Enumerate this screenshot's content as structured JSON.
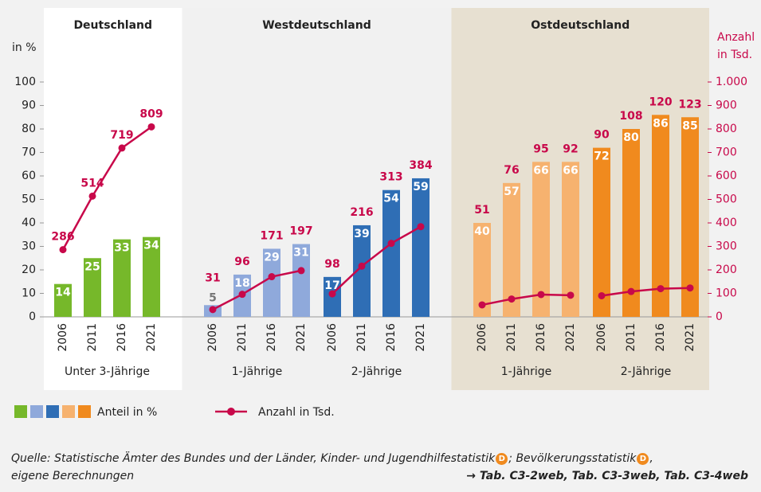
{
  "chart_data": {
    "type": "bar-line",
    "y_label": "in %",
    "y2_label": [
      "Anzahl",
      "in Tsd."
    ],
    "ylim": [
      0,
      100
    ],
    "yticks": [
      0,
      10,
      20,
      30,
      40,
      50,
      60,
      70,
      80,
      90,
      100
    ],
    "y2lim": [
      0,
      1000
    ],
    "y2ticks": [
      0,
      100,
      200,
      300,
      400,
      500,
      600,
      700,
      800,
      900,
      {
        "value": 1000,
        "label": "1.000"
      }
    ],
    "panels": [
      {
        "title": "Deutschland",
        "background": "#ffffff",
        "groups": [
          {
            "label": "Unter 3-Jährige",
            "categories": [
              "2006",
              "2011",
              "2016",
              "2021"
            ],
            "series": [
              {
                "name": "Anteil in %",
                "color": "#76b82a",
                "values": [
                  14,
                  25,
                  33,
                  34
                ]
              },
              {
                "name": "Anzahl in Tsd.",
                "color": "#c8084a",
                "axis": "y2",
                "values": [
                  286,
                  514,
                  719,
                  809
                ]
              }
            ]
          }
        ]
      },
      {
        "title": "Westdeutschland",
        "background": "#f1f1f1",
        "groups": [
          {
            "label": "1-Jährige",
            "categories": [
              "2006",
              "2011",
              "2016",
              "2021"
            ],
            "series": [
              {
                "name": "Anteil in %",
                "color": "#8fa9db",
                "values": [
                  5,
                  18,
                  29,
                  31
                ]
              },
              {
                "name": "Anzahl in Tsd.",
                "color": "#c8084a",
                "axis": "y2",
                "values": [
                  31,
                  96,
                  171,
                  197
                ]
              }
            ]
          },
          {
            "label": "2-Jährige",
            "categories": [
              "2006",
              "2011",
              "2016",
              "2021"
            ],
            "series": [
              {
                "name": "Anteil in %",
                "color": "#2f6eb5",
                "values": [
                  17,
                  39,
                  54,
                  59
                ]
              },
              {
                "name": "Anzahl in Tsd.",
                "color": "#c8084a",
                "axis": "y2",
                "values": [
                  98,
                  216,
                  313,
                  384
                ]
              }
            ]
          }
        ]
      },
      {
        "title": "Ostdeutschland",
        "background": "#e7e0d1",
        "groups": [
          {
            "label": "1-Jährige",
            "categories": [
              "2006",
              "2011",
              "2016",
              "2021"
            ],
            "series": [
              {
                "name": "Anteil in %",
                "color": "#f6b26f",
                "values": [
                  40,
                  57,
                  66,
                  66
                ]
              },
              {
                "name": "Anzahl in Tsd.",
                "color": "#c8084a",
                "axis": "y2",
                "values": [
                  51,
                  76,
                  95,
                  92
                ]
              }
            ]
          },
          {
            "label": "2-Jährige",
            "categories": [
              "2006",
              "2011",
              "2016",
              "2021"
            ],
            "series": [
              {
                "name": "Anteil in %",
                "color": "#f08a1e",
                "values": [
                  72,
                  80,
                  86,
                  85
                ]
              },
              {
                "name": "Anzahl in Tsd.",
                "color": "#c8084a",
                "axis": "y2",
                "values": [
                  90,
                  108,
                  120,
                  123
                ]
              }
            ]
          }
        ]
      }
    ],
    "source": {
      "parts": [
        "Quelle: Statistische Ämter des Bundes und der Länder, Kinder- und Jugendhilfestatistik",
        "; Bevölkerungsstatistik",
        ","
      ],
      "icon": "D",
      "line2": "eigene Berechnungen",
      "reference": "→ Tab. C3-2web, Tab. C3-3web, Tab. C3-4web"
    }
  }
}
